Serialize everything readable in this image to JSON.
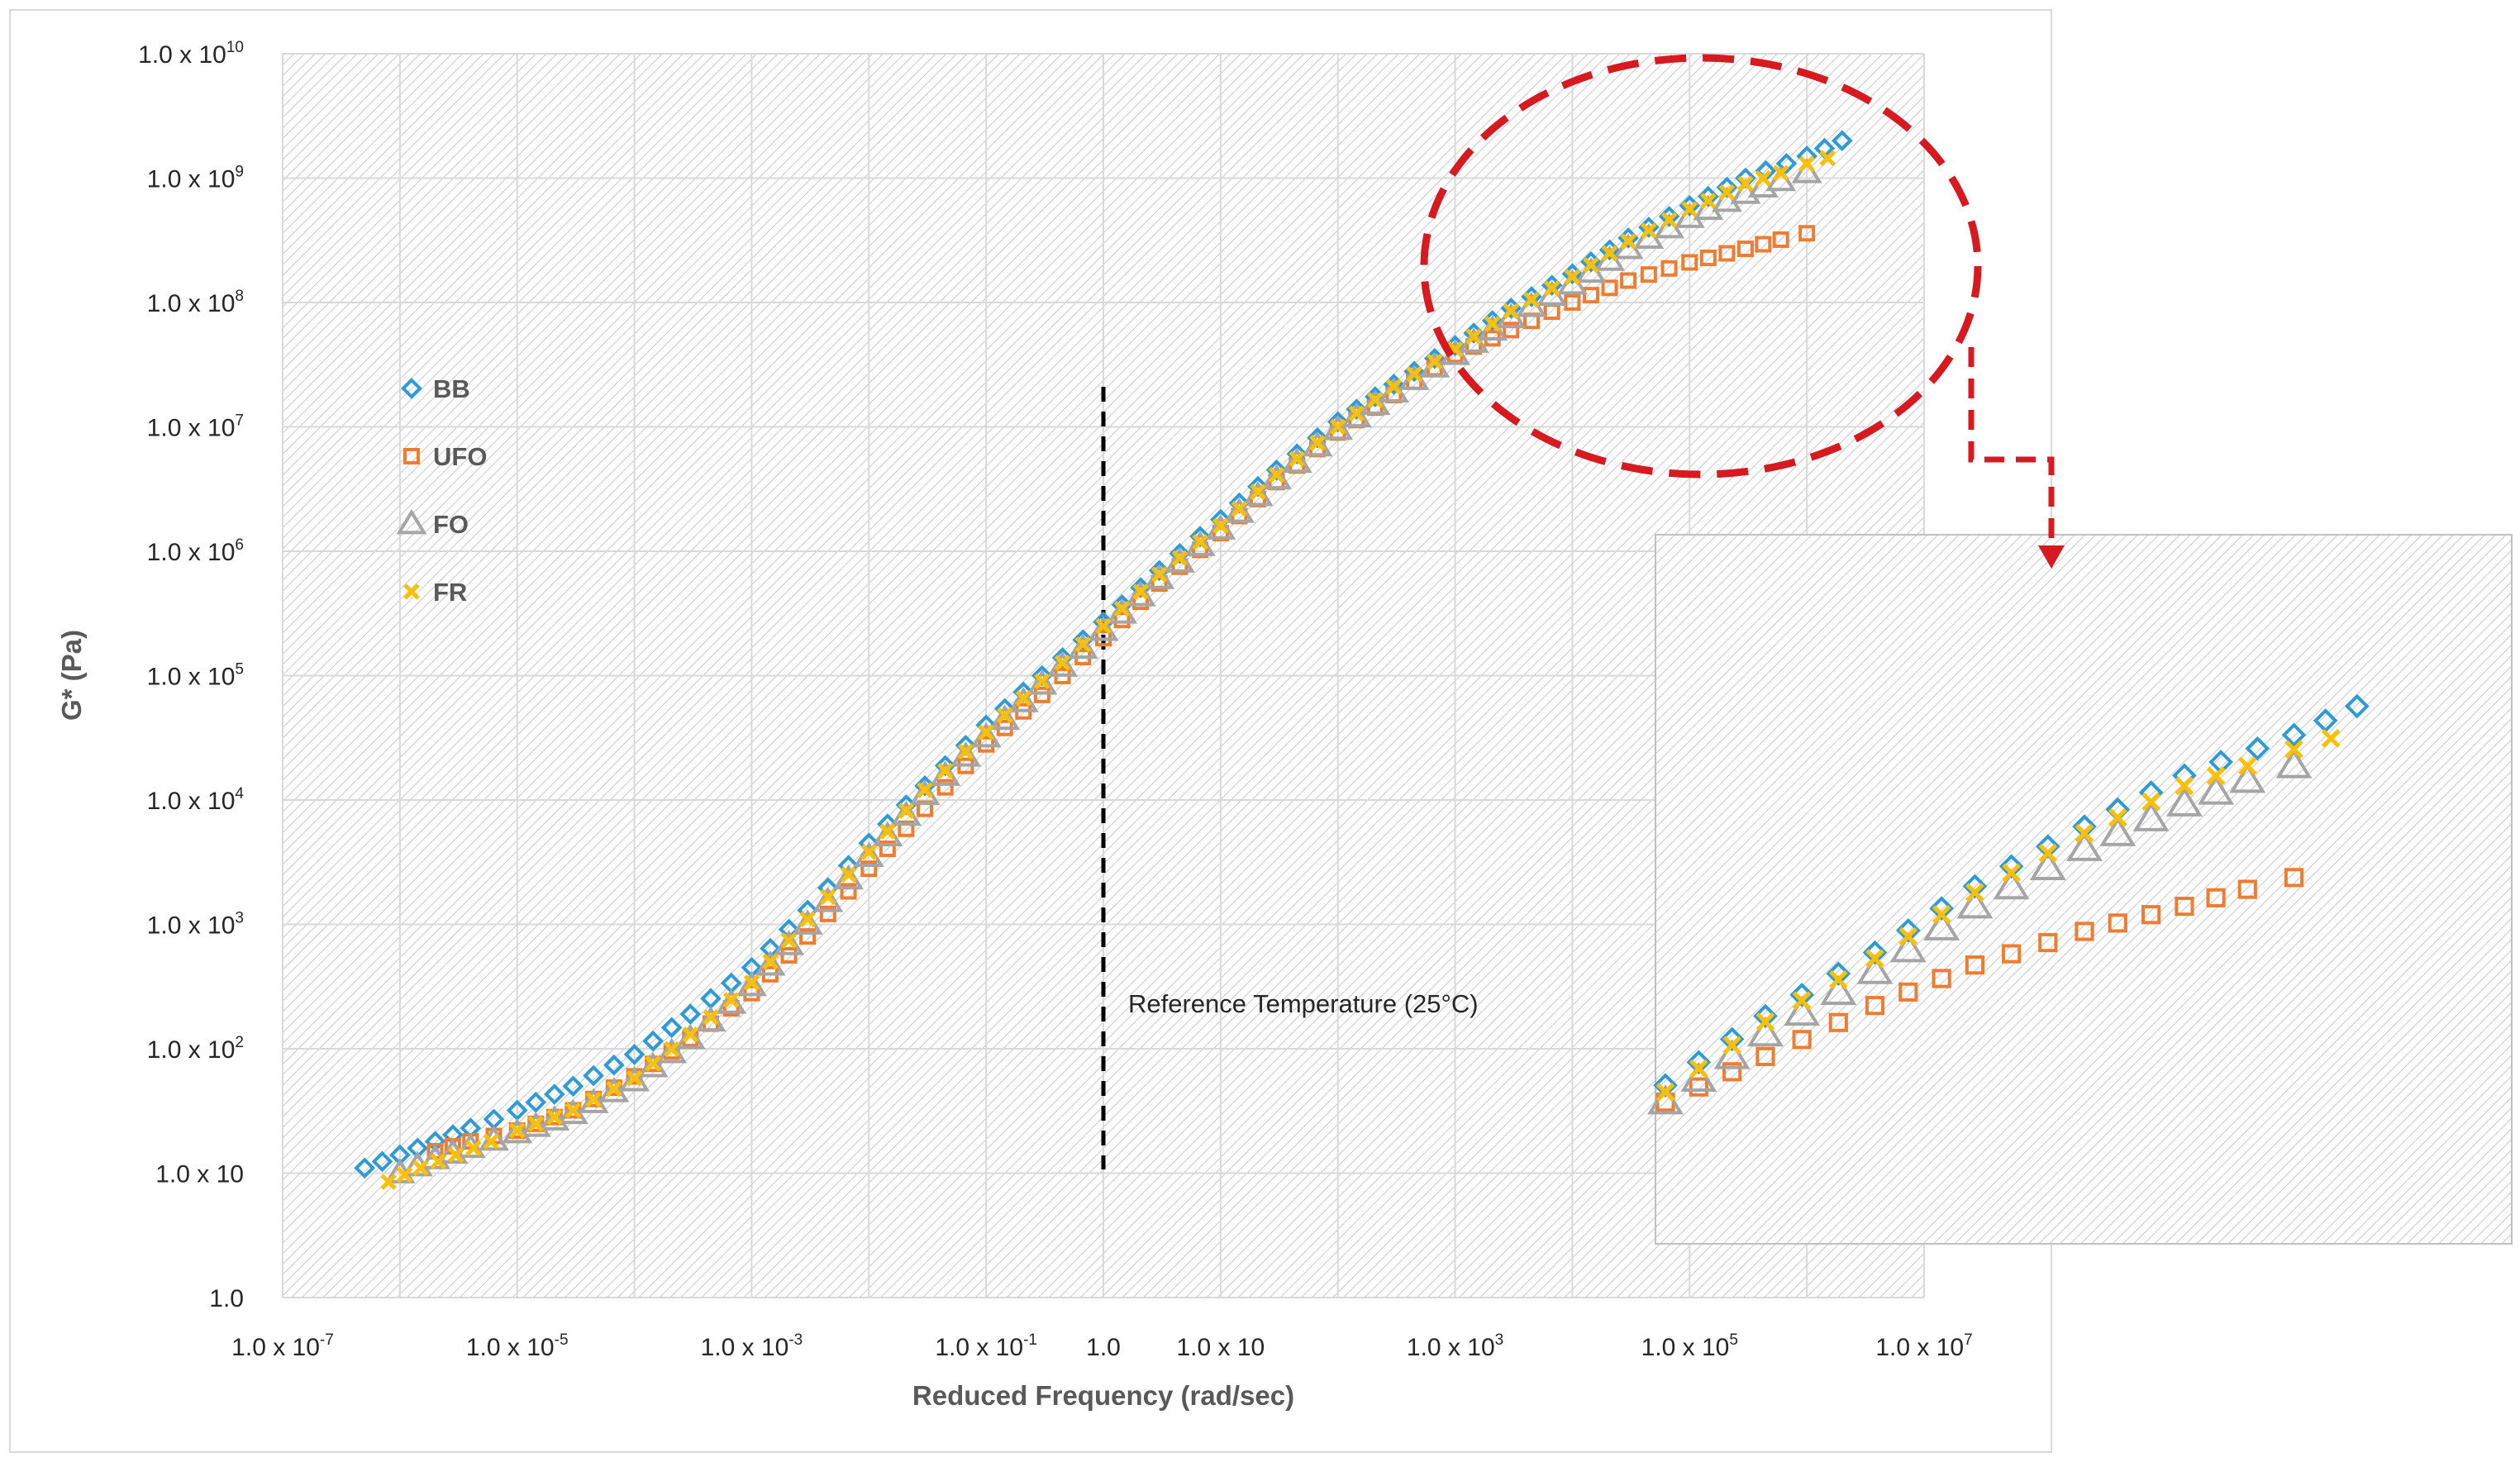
{
  "chart_data": {
    "type": "scatter",
    "title": "",
    "xlabel": "Reduced Frequency (rad/sec)",
    "ylabel": "G* (Pa)",
    "x_scale": "log",
    "y_scale": "log",
    "xlim": [
      1e-07,
      10000000.0
    ],
    "ylim": [
      1,
      10000000000.0
    ],
    "grid": true,
    "legend_position": "left-middle",
    "x_ticks": [
      {
        "value": 1e-07,
        "base": "1.0 x 10",
        "exp": "-7"
      },
      {
        "value": 1e-05,
        "base": "1.0 x 10",
        "exp": "-5"
      },
      {
        "value": 0.001,
        "base": "1.0 x 10",
        "exp": "-3"
      },
      {
        "value": 0.1,
        "base": "1.0 x 10",
        "exp": "-1"
      },
      {
        "value": 1,
        "base": "1.0",
        "exp": ""
      },
      {
        "value": 10,
        "base": "1.0 x 10",
        "exp": ""
      },
      {
        "value": 1000.0,
        "base": "1.0 x 10",
        "exp": "3"
      },
      {
        "value": 100000.0,
        "base": "1.0 x 10",
        "exp": "5"
      },
      {
        "value": 10000000.0,
        "base": "1.0 x 10",
        "exp": "7"
      }
    ],
    "y_ticks": [
      {
        "value": 1,
        "base": "1.0",
        "exp": ""
      },
      {
        "value": 10,
        "base": "1.0 x 10",
        "exp": ""
      },
      {
        "value": 100.0,
        "base": "1.0 x 10",
        "exp": "2"
      },
      {
        "value": 1000.0,
        "base": "1.0 x 10",
        "exp": "3"
      },
      {
        "value": 10000.0,
        "base": "1.0 x 10",
        "exp": "4"
      },
      {
        "value": 100000.0,
        "base": "1.0 x 10",
        "exp": "5"
      },
      {
        "value": 1000000.0,
        "base": "1.0 x 10",
        "exp": "6"
      },
      {
        "value": 10000000.0,
        "base": "1.0 x 10",
        "exp": "7"
      },
      {
        "value": 100000000.0,
        "base": "1.0 x 10",
        "exp": "8"
      },
      {
        "value": 1000000000.0,
        "base": "1.0 x 10",
        "exp": "9"
      },
      {
        "value": 10000000000.0,
        "base": "1.0 x 10",
        "exp": "10"
      }
    ],
    "reference_line": {
      "x": 1,
      "label": "Reference Temperature (25°C)"
    },
    "highlight_region": {
      "x_range": [
        1000.0,
        10000000.0
      ],
      "y_range": [
        10000000.0,
        10000000000.0
      ]
    },
    "series": [
      {
        "name": "BB",
        "marker": "diamond",
        "color": "#2E9BD6",
        "x": [
          5e-07,
          1e-06,
          2e-06,
          4e-06,
          1e-05,
          3e-05,
          0.0001,
          0.0003,
          0.001,
          0.003,
          0.01,
          0.03,
          0.1,
          0.3,
          1,
          3,
          10,
          30,
          100,
          300,
          1000,
          3000,
          10000.0,
          30000.0,
          100000.0,
          300000.0,
          1000000.0,
          2000000.0
        ],
        "y": [
          11,
          14,
          18,
          23,
          32,
          50,
          90,
          190,
          450,
          1300,
          4500,
          13000,
          40000,
          100000,
          270000,
          700000,
          1800000,
          4500000,
          11000000,
          22000000,
          45000000,
          90000000,
          170000000,
          330000000,
          600000000,
          1000000000,
          1500000000,
          2000000000
        ]
      },
      {
        "name": "UFO",
        "marker": "square",
        "color": "#ED7D31",
        "x": [
          2e-06,
          4e-06,
          1e-05,
          3e-05,
          0.0001,
          0.0003,
          0.001,
          0.003,
          0.01,
          0.03,
          0.1,
          0.3,
          1,
          3,
          10,
          30,
          100,
          300,
          1000,
          3000,
          10000.0,
          30000.0,
          100000.0,
          300000.0,
          600000.0,
          1000000.0
        ],
        "y": [
          15,
          18,
          22,
          32,
          60,
          120,
          280,
          800,
          2800,
          8500,
          28000,
          70000,
          200000,
          550000,
          1400000,
          3600000,
          9000000,
          18000000,
          38000000,
          60000000,
          100000000,
          150000000,
          210000000,
          270000000,
          320000000,
          360000000
        ]
      },
      {
        "name": "FO",
        "marker": "triangle",
        "color": "#A5A5A5",
        "x": [
          1e-06,
          2e-06,
          4e-06,
          1e-05,
          3e-05,
          0.0001,
          0.0003,
          0.001,
          0.003,
          0.01,
          0.03,
          0.1,
          0.3,
          1,
          3,
          10,
          30,
          100,
          300,
          1000,
          3000,
          10000.0,
          30000.0,
          100000.0,
          300000.0,
          600000.0,
          1000000.0
        ],
        "y": [
          10,
          13,
          16,
          21,
          30,
          55,
          120,
          320,
          1000,
          3500,
          11000,
          32000,
          85000,
          230000,
          600000,
          1500000,
          3800000,
          9500000,
          19000000,
          38000000,
          75000000,
          140000000,
          270000000,
          480000000,
          750000000,
          950000000,
          1100000000
        ]
      },
      {
        "name": "FR",
        "marker": "x",
        "color": "#FFC000",
        "x": [
          8e-07,
          1.5e-06,
          3e-06,
          6e-06,
          1e-05,
          3e-05,
          0.0001,
          0.0003,
          0.001,
          0.003,
          0.01,
          0.03,
          0.1,
          0.3,
          1,
          3,
          10,
          30,
          100,
          300,
          1000,
          3000,
          10000.0,
          30000.0,
          100000.0,
          300000.0,
          600000.0,
          1000000.0,
          1500000.0
        ],
        "y": [
          8.5,
          11,
          14,
          18,
          22,
          32,
          58,
          130,
          340,
          1100,
          3800,
          12000,
          35000,
          90000,
          250000,
          650000,
          1600000,
          4100000,
          10000000,
          21000000,
          42000000,
          85000000,
          160000000,
          310000000,
          560000000,
          900000000,
          1100000000,
          1300000000,
          1450000000
        ]
      }
    ]
  }
}
